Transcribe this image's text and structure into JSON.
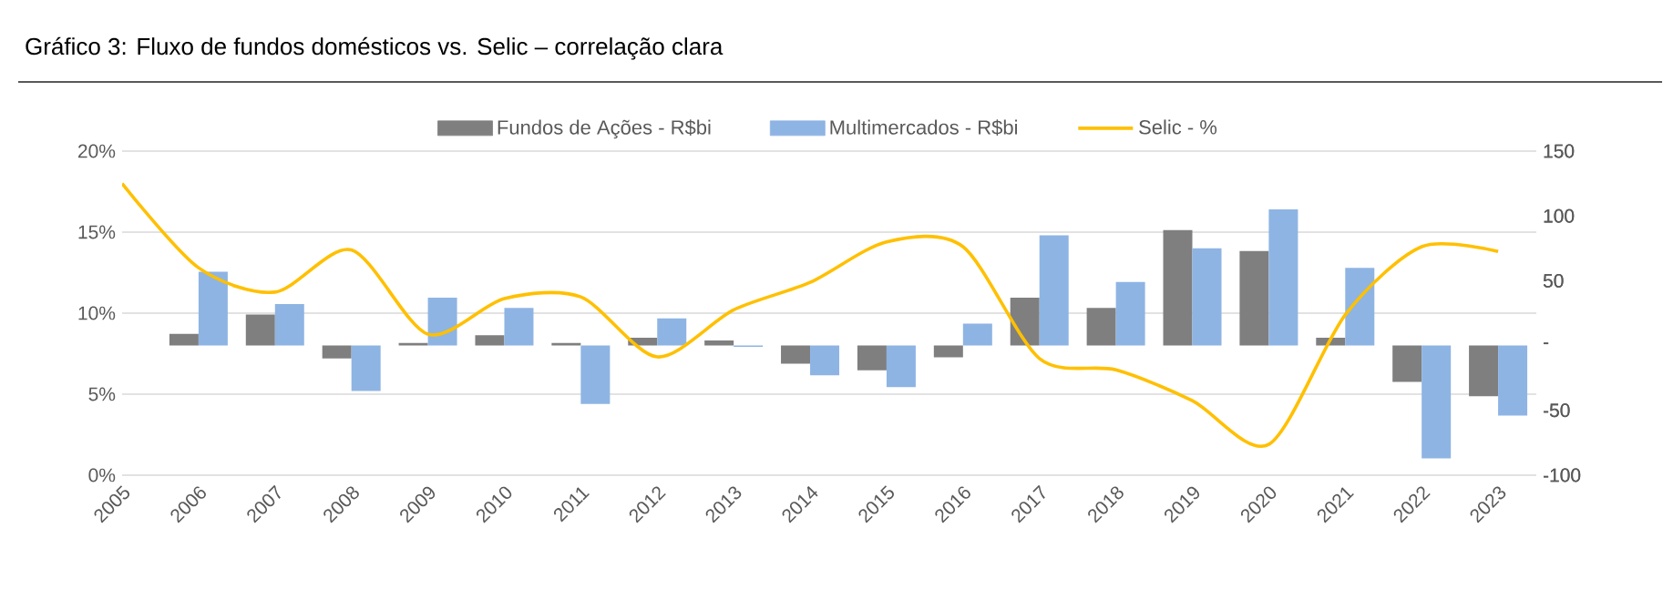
{
  "chart_data": {
    "type": "bar",
    "title": "Gráfico 3: Fluxo de fundos domésticos vs. Selic – correlação clara",
    "categories": [
      "2005",
      "2006",
      "2007",
      "2008",
      "2009",
      "2010",
      "2011",
      "2012",
      "2013",
      "2014",
      "2015",
      "2016",
      "2017",
      "2018",
      "2019",
      "2020",
      "2021",
      "2022",
      "2023"
    ],
    "series": [
      {
        "name": "Fundos de Ações - R$bi",
        "axis": "y2",
        "color": "#7f7f7f",
        "values": [
          null,
          9,
          24,
          -10,
          2,
          8,
          2,
          6,
          4,
          -14,
          -19,
          -9,
          37,
          29,
          89,
          73,
          6,
          -28,
          -39
        ]
      },
      {
        "name": "Multimercados - R$bi",
        "axis": "y2",
        "color": "#8eb4e3",
        "values": [
          null,
          57,
          32,
          -35,
          37,
          29,
          -45,
          21,
          -1,
          -23,
          -32,
          17,
          85,
          49,
          75,
          105,
          60,
          -87,
          -54
        ]
      },
      {
        "name": "Selic - %",
        "type": "line",
        "axis": "y",
        "color": "#ffc000",
        "values": [
          18.0,
          12.8,
          11.3,
          13.9,
          8.7,
          10.9,
          11.0,
          7.3,
          10.2,
          11.9,
          14.4,
          14.1,
          7.2,
          6.5,
          4.6,
          1.9,
          9.9,
          14.1,
          13.8
        ]
      }
    ],
    "ylim": [
      0,
      20
    ],
    "yticks": [
      {
        "value": 0,
        "label": "0%"
      },
      {
        "value": 5,
        "label": "5%"
      },
      {
        "value": 10,
        "label": "10%"
      },
      {
        "value": 15,
        "label": "15%"
      },
      {
        "value": 20,
        "label": "20%"
      }
    ],
    "y2lim": [
      -100,
      150
    ],
    "y2ticks": [
      -100,
      -50,
      {
        "value": 0,
        "label": "-"
      },
      50,
      100,
      150
    ],
    "grid": "y",
    "legend": "top"
  }
}
